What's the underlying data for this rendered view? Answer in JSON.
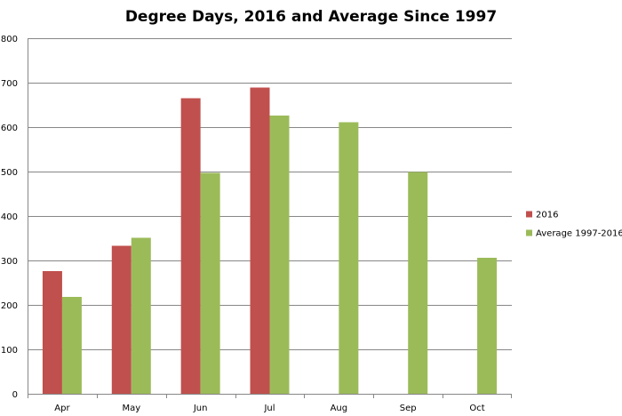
{
  "chart_data": {
    "type": "bar",
    "title": "Degree Days, 2016 and Average Since 1997",
    "xlabel": "",
    "ylabel": "",
    "categories": [
      "Apr",
      "May",
      "Jun",
      "Jul",
      "Aug",
      "Sep",
      "Oct"
    ],
    "series": [
      {
        "name": "2016",
        "color": "#c0504d",
        "values": [
          276,
          333,
          665,
          689,
          null,
          null,
          null
        ]
      },
      {
        "name": "Average 1997-2016",
        "color": "#9bbb59",
        "values": [
          218,
          351,
          497,
          626,
          611,
          499,
          306
        ]
      }
    ],
    "ylim": [
      0,
      800
    ],
    "yticks": [
      0,
      100,
      200,
      300,
      400,
      500,
      600,
      700,
      800
    ],
    "grid": true,
    "legend_position": "right",
    "colors": {
      "grid": "#878787",
      "axis": "#878787"
    }
  }
}
